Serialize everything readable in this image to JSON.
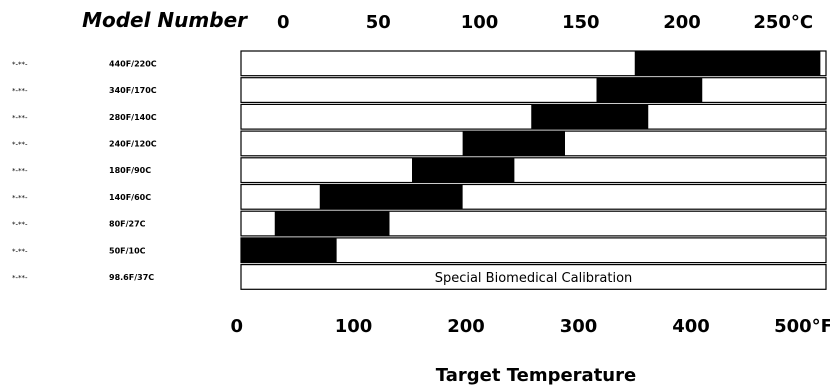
{
  "chart_data": {
    "type": "bar",
    "title": "",
    "category_header": "Model Number",
    "xlabel": "Target Temperature",
    "xlim_f": [
      0,
      520
    ],
    "top_axis_ticks": [
      "0",
      "50",
      "100",
      "150",
      "200",
      "250°C"
    ],
    "top_axis_values_c": [
      0,
      50,
      100,
      150,
      200,
      250
    ],
    "bottom_axis_ticks": [
      "0",
      "100",
      "200",
      "300",
      "400",
      "500°F"
    ],
    "bottom_axis_values_f": [
      0,
      100,
      200,
      300,
      400,
      500
    ],
    "rows": [
      {
        "model": "*-**-",
        "label": "440F/220C",
        "start_f": 350,
        "end_f": 515
      },
      {
        "model": "*-**-",
        "label": "340F/170C",
        "start_f": 316,
        "end_f": 410
      },
      {
        "model": "*-**-",
        "label": "280F/140C",
        "start_f": 258,
        "end_f": 362
      },
      {
        "model": "*-**-",
        "label": "240F/120C",
        "start_f": 197,
        "end_f": 288
      },
      {
        "model": "*-**-",
        "label": "180F/90C",
        "start_f": 152,
        "end_f": 243
      },
      {
        "model": "*-**-",
        "label": "140F/60C",
        "start_f": 70,
        "end_f": 197
      },
      {
        "model": "*-**-",
        "label": "80F/27C",
        "start_f": 30,
        "end_f": 132
      },
      {
        "model": "*-**-",
        "label": "50F/10C",
        "start_f": 0,
        "end_f": 85
      },
      {
        "model": "*-**-",
        "label": "98.6F/37C",
        "start_f": null,
        "end_f": null,
        "note": "Special Biomedical Calibration"
      }
    ],
    "colors": {
      "filled": "#000000",
      "empty": "#ffffff",
      "border": "#000000"
    },
    "grid": false,
    "legend": "none"
  }
}
